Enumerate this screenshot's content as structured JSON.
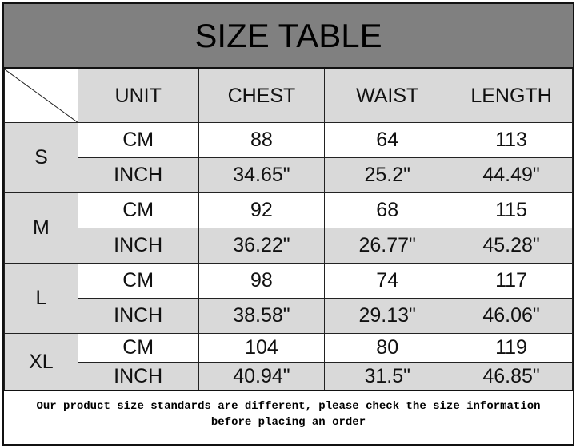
{
  "title": "SIZE TABLE",
  "headers": [
    "UNIT",
    "CHEST",
    "WAIST",
    "LENGTH"
  ],
  "rows": [
    {
      "size": "S",
      "cm": {
        "unit": "CM",
        "chest": "88",
        "waist": "64",
        "length": "113"
      },
      "inch": {
        "unit": "INCH",
        "chest": "34.65\"",
        "waist": "25.2\"",
        "length": "44.49\""
      }
    },
    {
      "size": "M",
      "cm": {
        "unit": "CM",
        "chest": "92",
        "waist": "68",
        "length": "115"
      },
      "inch": {
        "unit": "INCH",
        "chest": "36.22\"",
        "waist": "26.77\"",
        "length": "45.28\""
      }
    },
    {
      "size": "L",
      "cm": {
        "unit": "CM",
        "chest": "98",
        "waist": "74",
        "length": "117"
      },
      "inch": {
        "unit": "INCH",
        "chest": "38.58\"",
        "waist": "29.13\"",
        "length": "46.06\""
      }
    },
    {
      "size": "XL",
      "cm": {
        "unit": "CM",
        "chest": "104",
        "waist": "80",
        "length": "119"
      },
      "inch": {
        "unit": "INCH",
        "chest": "40.94\"",
        "waist": "31.5\"",
        "length": "46.85\""
      }
    }
  ],
  "footer": {
    "line1": "Our product size standards are different, please check the size information",
    "line2": "before placing an order"
  },
  "colors": {
    "title_bg": "#808080",
    "cell_gray": "#d9d9d9"
  }
}
